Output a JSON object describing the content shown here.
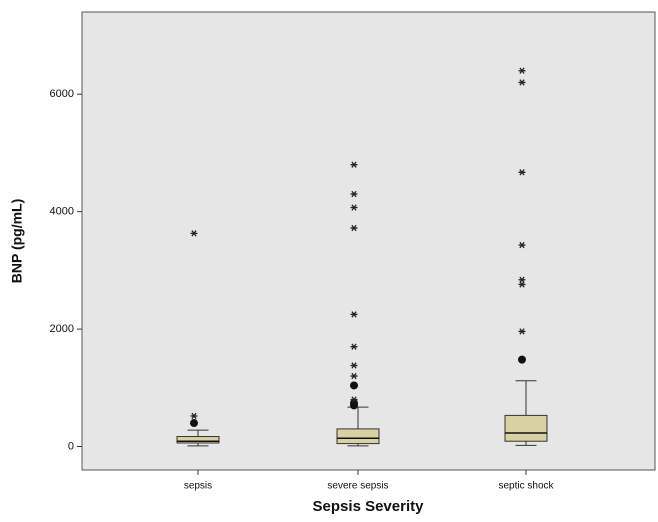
{
  "chart_data": {
    "type": "box",
    "x_label": "Sepsis Severity",
    "y_label": "BNP (pg/mL)",
    "categories": [
      "sepsis",
      "severe sepsis",
      "septic shock"
    ],
    "box_color": "#d8d2a2",
    "ylim": [
      -400,
      7400
    ],
    "yticks": [
      0,
      2000,
      4000,
      6000
    ],
    "boxes": [
      {
        "min": 10,
        "q1": 60,
        "median": 90,
        "q3": 170,
        "max": 280,
        "outliers": [
          400
        ],
        "extremes": [
          3630,
          520
        ]
      },
      {
        "min": 10,
        "q1": 50,
        "median": 140,
        "q3": 300,
        "max": 670,
        "outliers": [
          700,
          740,
          1040
        ],
        "extremes": [
          4800,
          4300,
          4070,
          3720,
          2250,
          1700,
          1380,
          1200,
          800
        ]
      },
      {
        "min": 20,
        "q1": 90,
        "median": 230,
        "q3": 530,
        "max": 1120,
        "outliers": [
          1480
        ],
        "extremes": [
          6400,
          6200,
          4670,
          3430,
          2840,
          2760,
          1960
        ]
      }
    ]
  }
}
